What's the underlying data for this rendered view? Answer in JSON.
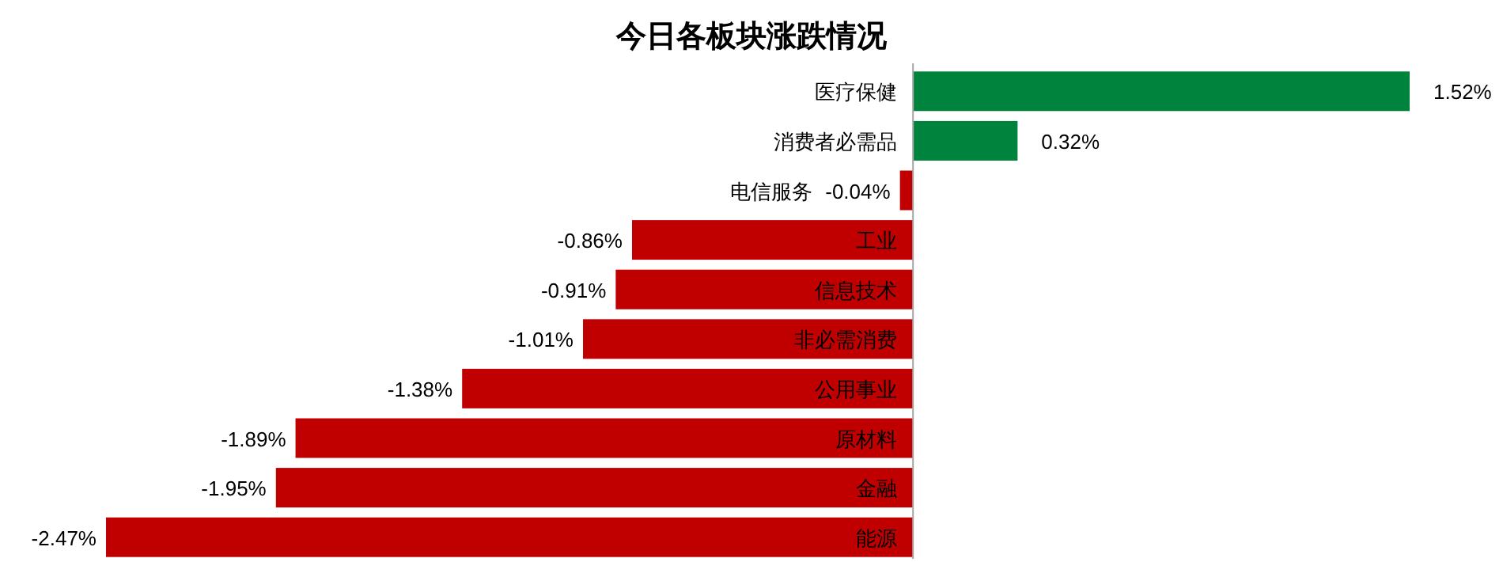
{
  "chart_data": {
    "type": "bar",
    "orientation": "horizontal",
    "title": "今日各板块涨跌情况",
    "categories": [
      "医疗保健",
      "消费者必需品",
      "电信服务",
      "工业",
      "信息技术",
      "非必需消费",
      "公用事业",
      "原材料",
      "金融",
      "能源"
    ],
    "values": [
      1.52,
      0.32,
      -0.04,
      -0.86,
      -0.91,
      -1.01,
      -1.38,
      -1.89,
      -1.95,
      -2.47
    ],
    "colors": [
      "#00843d",
      "#00843d",
      "#c00000",
      "#c00000",
      "#c00000",
      "#c00000",
      "#c00000",
      "#c00000",
      "#c00000",
      "#c00000"
    ],
    "value_labels": [
      "1.52%",
      "0.32%",
      "-0.04%",
      "-0.86%",
      "-0.91%",
      "-1.01%",
      "-1.38%",
      "-1.89%",
      "-1.95%",
      "-2.47%"
    ]
  }
}
